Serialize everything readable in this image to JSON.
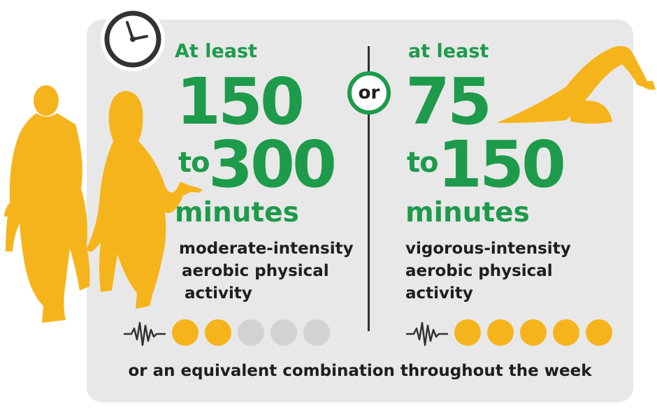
{
  "left": {
    "at_least": "At least",
    "from_value": "150",
    "to_word": "to",
    "to_value": "300",
    "unit": "minutes",
    "description": [
      "moderate-intensity",
      "aerobic physical",
      "activity"
    ],
    "intensity_level": {
      "filled": 2,
      "total": 5
    }
  },
  "separator_label": "or",
  "right": {
    "at_least": "at least",
    "from_value": "75",
    "to_word": "to",
    "to_value": "150",
    "unit": "minutes",
    "description": [
      "vigorous-intensity",
      "aerobic physical",
      "activity"
    ],
    "intensity_level": {
      "filled": 5,
      "total": 5
    }
  },
  "footer": "or an equivalent combination throughout the week",
  "icons": {
    "clock": "clock-icon",
    "walkers": "walking-couple-illustration",
    "swimmer": "swimmer-illustration",
    "wave": "activity-wave-icon"
  },
  "colors": {
    "green": "#1e9a4b",
    "gold": "#f6b41c",
    "panel": "#e8e8e8",
    "dot_off": "#d2d2d2",
    "text": "#1e1e1e"
  }
}
